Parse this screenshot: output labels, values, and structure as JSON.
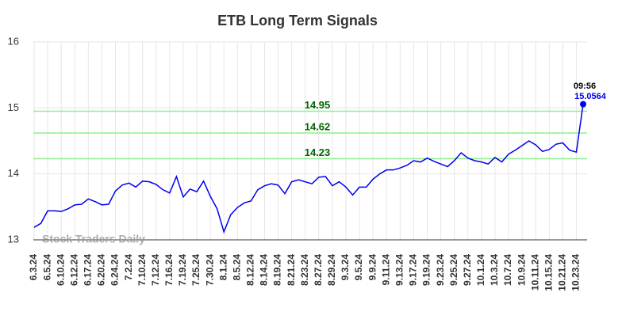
{
  "chart_data": {
    "type": "line",
    "title": "ETB Long Term Signals",
    "categories": [
      "6.3.24",
      null,
      "6.5.24",
      null,
      "6.10.24",
      null,
      "6.12.24",
      null,
      "6.17.24",
      null,
      "6.20.24",
      null,
      "6.24.24",
      null,
      "7.2.24",
      null,
      "7.10.24",
      null,
      "7.12.24",
      null,
      "7.16.24",
      null,
      "7.19.24",
      null,
      "7.25.24",
      null,
      "7.30.24",
      null,
      "8.1.24",
      null,
      "8.5.24",
      null,
      "8.12.24",
      null,
      "8.14.24",
      null,
      "8.19.24",
      null,
      "8.21.24",
      null,
      "8.23.24",
      null,
      "8.27.24",
      null,
      "8.29.24",
      null,
      "9.3.24",
      null,
      "9.5.24",
      null,
      "9.9.24",
      null,
      "9.11.24",
      null,
      "9.13.24",
      null,
      "9.17.24",
      null,
      "9.19.24",
      null,
      "9.23.24",
      null,
      "9.25.24",
      null,
      "9.27.24",
      null,
      "10.1.24",
      null,
      "10.3.24",
      null,
      "10.7.24",
      null,
      "10.9.24",
      null,
      "10.11.24",
      null,
      "10.15.24",
      null,
      "10.21.24",
      null,
      "10.23.24",
      null
    ],
    "values": [
      13.19,
      13.25,
      13.44,
      13.44,
      13.43,
      13.47,
      13.53,
      13.54,
      13.62,
      13.58,
      13.53,
      13.54,
      13.74,
      13.83,
      13.86,
      13.8,
      13.89,
      13.88,
      13.84,
      13.76,
      13.71,
      13.96,
      13.65,
      13.77,
      13.73,
      13.89,
      13.66,
      13.47,
      13.12,
      13.38,
      13.49,
      13.56,
      13.59,
      13.76,
      13.82,
      13.85,
      13.83,
      13.7,
      13.88,
      13.91,
      13.88,
      13.85,
      13.95,
      13.96,
      13.82,
      13.88,
      13.8,
      13.68,
      13.8,
      13.8,
      13.92,
      14.0,
      14.06,
      14.06,
      14.09,
      14.13,
      14.2,
      14.18,
      14.24,
      14.19,
      14.15,
      14.11,
      14.2,
      14.32,
      14.24,
      14.2,
      14.18,
      14.15,
      14.25,
      14.18,
      14.3,
      14.36,
      14.43,
      14.5,
      14.44,
      14.34,
      14.37,
      14.45,
      14.47,
      14.36,
      14.33,
      15.0564
    ],
    "color": "#0000ee",
    "ylim": [
      13,
      16
    ],
    "yticks": [
      13,
      14,
      15,
      16
    ],
    "grid": true,
    "hlines": [
      14.95,
      14.62,
      14.23
    ],
    "hline_color": "#90ee90",
    "hline_label_color": "#006400",
    "annotation": "09:56",
    "watermark": "Stock Traders Daily"
  }
}
